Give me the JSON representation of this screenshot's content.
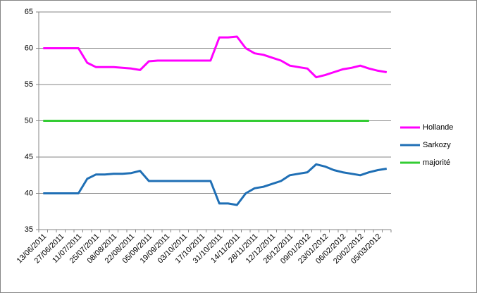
{
  "chart_data": {
    "type": "line",
    "categories": [
      "13/06/2011",
      null,
      "27/06/2011",
      null,
      "11/07/2011",
      null,
      "25/07/2011",
      null,
      "08/08/2011",
      null,
      "22/08/2011",
      null,
      "05/09/2011",
      null,
      "19/09/2011",
      null,
      "03/10/2011",
      null,
      "17/10/2011",
      null,
      "31/10/2011",
      null,
      "14/11/2011",
      null,
      "28/11/2011",
      null,
      "12/12/2011",
      null,
      "26/12/2011",
      null,
      "09/01/2012",
      null,
      "23/01/2012",
      null,
      "06/02/2012",
      null,
      "20/02/2012",
      null,
      "05/03/2012",
      null
    ],
    "series": [
      {
        "name": "Hollande",
        "color": "#ff00ff",
        "values": [
          60,
          60,
          60,
          60,
          60,
          58,
          57.4,
          57.4,
          57.4,
          57.3,
          57.2,
          57,
          58.2,
          58.3,
          58.3,
          58.3,
          58.3,
          58.3,
          58.3,
          58.3,
          61.5,
          61.5,
          61.6,
          60,
          59.3,
          59.1,
          58.7,
          58.3,
          57.6,
          57.4,
          57.2,
          56,
          56.3,
          56.7,
          57.1,
          57.3,
          57.6,
          57.2,
          56.9,
          56.7
        ]
      },
      {
        "name": "Sarkozy",
        "color": "#1f6fb5",
        "values": [
          40,
          40,
          40,
          40,
          40,
          42,
          42.6,
          42.6,
          42.7,
          42.7,
          42.8,
          43.1,
          41.7,
          41.7,
          41.7,
          41.7,
          41.7,
          41.7,
          41.7,
          41.7,
          38.6,
          38.6,
          38.4,
          40,
          40.7,
          40.9,
          41.3,
          41.7,
          42.5,
          42.7,
          42.9,
          44,
          43.7,
          43.2,
          42.9,
          42.7,
          42.5,
          42.9,
          43.2,
          43.4
        ]
      },
      {
        "name": "majorité",
        "color": "#33cc33",
        "values": [
          50,
          50,
          50,
          50,
          50,
          50,
          50,
          50,
          50,
          50,
          50,
          50,
          50,
          50,
          50,
          50,
          50,
          50,
          50,
          50,
          50,
          50,
          50,
          50,
          50,
          50,
          50,
          50,
          50,
          50,
          50,
          50,
          50,
          50,
          50,
          50,
          50,
          50,
          null,
          null
        ]
      }
    ],
    "ylim": [
      35,
      65
    ],
    "yticks": [
      35,
      40,
      45,
      50,
      55,
      60,
      65
    ],
    "grid": true,
    "legend": "right"
  }
}
